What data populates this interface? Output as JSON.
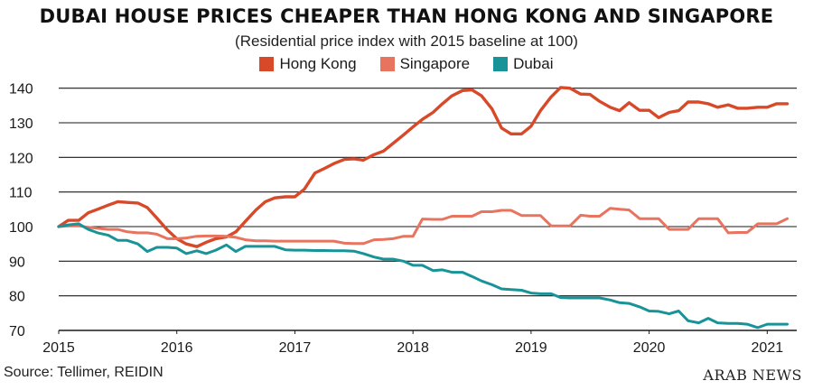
{
  "chart_data": {
    "type": "line",
    "title": "DUBAI HOUSE PRICES CHEAPER THAN HONG KONG AND SINGAPORE",
    "subtitle": "(Residential price index with 2015 baseline at 100)",
    "xlabel": "",
    "ylabel": "",
    "xlim": [
      2015,
      2021.25
    ],
    "ylim": [
      70,
      142
    ],
    "x_ticks": [
      2015,
      2016,
      2017,
      2018,
      2019,
      2020,
      2021
    ],
    "y_ticks": [
      70,
      80,
      90,
      100,
      110,
      120,
      130,
      140
    ],
    "grid": "horizontal",
    "legend_position": "top-center",
    "series": [
      {
        "name": "Hong Kong",
        "color": "#d8492a",
        "points": [
          [
            2015.0,
            100
          ],
          [
            2015.08,
            101.8
          ],
          [
            2015.17,
            101.8
          ],
          [
            2015.25,
            104
          ],
          [
            2015.33,
            105
          ],
          [
            2015.42,
            106.2
          ],
          [
            2015.5,
            107.2
          ],
          [
            2015.58,
            107
          ],
          [
            2015.67,
            106.8
          ],
          [
            2015.75,
            105.5
          ],
          [
            2015.83,
            102.5
          ],
          [
            2015.92,
            99
          ],
          [
            2016.0,
            96.5
          ],
          [
            2016.08,
            95
          ],
          [
            2016.17,
            94.2
          ],
          [
            2016.25,
            95.5
          ],
          [
            2016.33,
            96.5
          ],
          [
            2016.42,
            97
          ],
          [
            2016.5,
            98.5
          ],
          [
            2016.58,
            101.5
          ],
          [
            2016.67,
            104.8
          ],
          [
            2016.75,
            107.2
          ],
          [
            2016.83,
            108.3
          ],
          [
            2016.92,
            108.6
          ],
          [
            2017.0,
            108.6
          ],
          [
            2017.08,
            110.8
          ],
          [
            2017.17,
            115.5
          ],
          [
            2017.25,
            116.8
          ],
          [
            2017.33,
            118.2
          ],
          [
            2017.42,
            119.4
          ],
          [
            2017.5,
            119.6
          ],
          [
            2017.58,
            119.2
          ],
          [
            2017.67,
            120.8
          ],
          [
            2017.75,
            121.8
          ],
          [
            2017.83,
            124
          ],
          [
            2017.92,
            126.5
          ],
          [
            2018.0,
            128.8
          ],
          [
            2018.08,
            131
          ],
          [
            2018.17,
            133
          ],
          [
            2018.25,
            135.5
          ],
          [
            2018.33,
            137.8
          ],
          [
            2018.42,
            139.3
          ],
          [
            2018.5,
            139.5
          ],
          [
            2018.58,
            137.8
          ],
          [
            2018.67,
            134
          ],
          [
            2018.75,
            128.5
          ],
          [
            2018.83,
            126.8
          ],
          [
            2018.92,
            126.8
          ],
          [
            2019.0,
            129
          ],
          [
            2019.08,
            133.5
          ],
          [
            2019.17,
            137.5
          ],
          [
            2019.25,
            140.2
          ],
          [
            2019.33,
            140
          ],
          [
            2019.42,
            138.3
          ],
          [
            2019.5,
            138.2
          ],
          [
            2019.58,
            136.2
          ],
          [
            2019.67,
            134.5
          ],
          [
            2019.75,
            133.5
          ],
          [
            2019.83,
            135.8
          ],
          [
            2019.92,
            133.6
          ],
          [
            2020.0,
            133.6
          ],
          [
            2020.08,
            131.5
          ],
          [
            2020.17,
            133
          ],
          [
            2020.25,
            133.5
          ],
          [
            2020.33,
            136
          ],
          [
            2020.42,
            136
          ],
          [
            2020.5,
            135.5
          ],
          [
            2020.58,
            134.5
          ],
          [
            2020.67,
            135.2
          ],
          [
            2020.75,
            134.2
          ],
          [
            2020.83,
            134.2
          ],
          [
            2020.92,
            134.5
          ],
          [
            2021.0,
            134.5
          ],
          [
            2021.08,
            135.5
          ],
          [
            2021.17,
            135.5
          ]
        ]
      },
      {
        "name": "Singapore",
        "color": "#e8735f",
        "points": [
          [
            2015.0,
            100
          ],
          [
            2015.08,
            100.2
          ],
          [
            2015.17,
            100.2
          ],
          [
            2015.25,
            99.8
          ],
          [
            2015.33,
            99.5
          ],
          [
            2015.42,
            99.2
          ],
          [
            2015.5,
            99.2
          ],
          [
            2015.58,
            98.5
          ],
          [
            2015.67,
            98.2
          ],
          [
            2015.75,
            98.2
          ],
          [
            2015.83,
            97.8
          ],
          [
            2015.92,
            96.5
          ],
          [
            2016.0,
            96.5
          ],
          [
            2016.08,
            96.7
          ],
          [
            2016.17,
            97.2
          ],
          [
            2016.25,
            97.3
          ],
          [
            2016.33,
            97.3
          ],
          [
            2016.42,
            97.2
          ],
          [
            2016.5,
            96.9
          ],
          [
            2016.58,
            96.2
          ],
          [
            2016.67,
            95.9
          ],
          [
            2016.75,
            95.9
          ],
          [
            2016.83,
            95.8
          ],
          [
            2016.92,
            95.8
          ],
          [
            2017.0,
            95.8
          ],
          [
            2017.08,
            95.8
          ],
          [
            2017.17,
            95.8
          ],
          [
            2017.25,
            95.8
          ],
          [
            2017.33,
            95.8
          ],
          [
            2017.42,
            95.2
          ],
          [
            2017.5,
            95.1
          ],
          [
            2017.58,
            95.1
          ],
          [
            2017.67,
            96.2
          ],
          [
            2017.75,
            96.3
          ],
          [
            2017.83,
            96.5
          ],
          [
            2017.92,
            97.2
          ],
          [
            2018.0,
            97.2
          ],
          [
            2018.08,
            102.2
          ],
          [
            2018.17,
            102.1
          ],
          [
            2018.25,
            102.1
          ],
          [
            2018.33,
            103
          ],
          [
            2018.42,
            103
          ],
          [
            2018.5,
            103
          ],
          [
            2018.58,
            104.3
          ],
          [
            2018.67,
            104.3
          ],
          [
            2018.75,
            104.7
          ],
          [
            2018.83,
            104.7
          ],
          [
            2018.92,
            103.2
          ],
          [
            2019.0,
            103.2
          ],
          [
            2019.08,
            103.2
          ],
          [
            2019.17,
            100.2
          ],
          [
            2019.25,
            100.2
          ],
          [
            2019.33,
            100.2
          ],
          [
            2019.42,
            103.3
          ],
          [
            2019.5,
            103
          ],
          [
            2019.58,
            103
          ],
          [
            2019.67,
            105.3
          ],
          [
            2019.75,
            105
          ],
          [
            2019.83,
            104.8
          ],
          [
            2019.92,
            102.3
          ],
          [
            2020.0,
            102.3
          ],
          [
            2020.08,
            102.3
          ],
          [
            2020.17,
            99.2
          ],
          [
            2020.25,
            99.2
          ],
          [
            2020.33,
            99.2
          ],
          [
            2020.42,
            102.3
          ],
          [
            2020.5,
            102.3
          ],
          [
            2020.58,
            102.3
          ],
          [
            2020.67,
            98.2
          ],
          [
            2020.75,
            98.3
          ],
          [
            2020.83,
            98.3
          ],
          [
            2020.92,
            100.8
          ],
          [
            2021.0,
            100.8
          ],
          [
            2021.08,
            100.8
          ],
          [
            2021.17,
            102.3
          ]
        ]
      },
      {
        "name": "Dubai",
        "color": "#189397",
        "points": [
          [
            2015.0,
            100
          ],
          [
            2015.08,
            100.5
          ],
          [
            2015.17,
            100.8
          ],
          [
            2015.25,
            99.2
          ],
          [
            2015.33,
            98.2
          ],
          [
            2015.42,
            97.5
          ],
          [
            2015.5,
            96
          ],
          [
            2015.58,
            96
          ],
          [
            2015.67,
            95
          ],
          [
            2015.75,
            92.8
          ],
          [
            2015.83,
            94
          ],
          [
            2015.92,
            94
          ],
          [
            2016.0,
            93.8
          ],
          [
            2016.08,
            92.2
          ],
          [
            2016.17,
            93
          ],
          [
            2016.25,
            92.2
          ],
          [
            2016.33,
            93.2
          ],
          [
            2016.42,
            94.7
          ],
          [
            2016.5,
            92.8
          ],
          [
            2016.58,
            94.3
          ],
          [
            2016.67,
            94.3
          ],
          [
            2016.75,
            94.3
          ],
          [
            2016.83,
            94.3
          ],
          [
            2016.92,
            93.3
          ],
          [
            2017.0,
            93.2
          ],
          [
            2017.08,
            93.2
          ],
          [
            2017.17,
            93.1
          ],
          [
            2017.25,
            93.1
          ],
          [
            2017.33,
            93
          ],
          [
            2017.42,
            93
          ],
          [
            2017.5,
            92.9
          ],
          [
            2017.58,
            92.2
          ],
          [
            2017.67,
            91.2
          ],
          [
            2017.75,
            90.6
          ],
          [
            2017.83,
            90.6
          ],
          [
            2017.92,
            90
          ],
          [
            2018.0,
            88.8
          ],
          [
            2018.08,
            88.8
          ],
          [
            2018.17,
            87.3
          ],
          [
            2018.25,
            87.5
          ],
          [
            2018.33,
            86.8
          ],
          [
            2018.42,
            86.8
          ],
          [
            2018.5,
            85.6
          ],
          [
            2018.58,
            84.3
          ],
          [
            2018.67,
            83.2
          ],
          [
            2018.75,
            82
          ],
          [
            2018.83,
            81.8
          ],
          [
            2018.92,
            81.6
          ],
          [
            2019.0,
            80.8
          ],
          [
            2019.08,
            80.6
          ],
          [
            2019.17,
            80.6
          ],
          [
            2019.25,
            79.5
          ],
          [
            2019.33,
            79.4
          ],
          [
            2019.42,
            79.4
          ],
          [
            2019.5,
            79.4
          ],
          [
            2019.58,
            79.4
          ],
          [
            2019.67,
            78.8
          ],
          [
            2019.75,
            78
          ],
          [
            2019.83,
            77.8
          ],
          [
            2019.92,
            76.8
          ],
          [
            2020.0,
            75.6
          ],
          [
            2020.08,
            75.5
          ],
          [
            2020.17,
            74.8
          ],
          [
            2020.25,
            75.6
          ],
          [
            2020.33,
            72.8
          ],
          [
            2020.42,
            72.2
          ],
          [
            2020.5,
            73.5
          ],
          [
            2020.58,
            72.2
          ],
          [
            2020.67,
            72
          ],
          [
            2020.75,
            72
          ],
          [
            2020.83,
            71.8
          ],
          [
            2020.92,
            70.8
          ],
          [
            2021.0,
            71.8
          ],
          [
            2021.08,
            71.8
          ],
          [
            2021.17,
            71.8
          ]
        ]
      }
    ]
  },
  "footer": {
    "source": "Source: Tellimer, REIDIN",
    "brand": "ARAB NEWS"
  }
}
